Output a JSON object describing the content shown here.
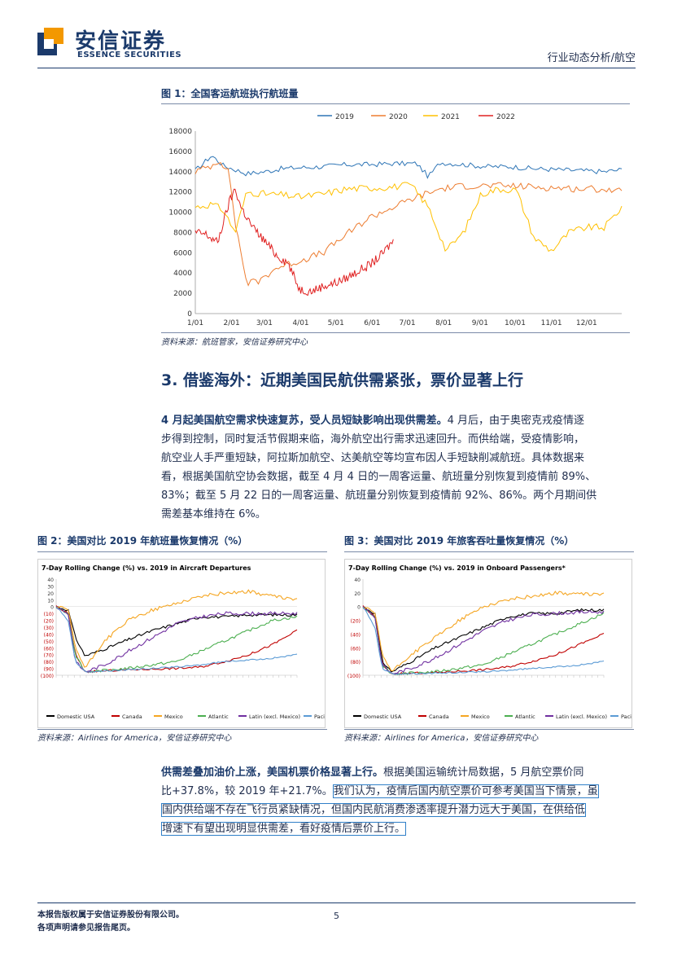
{
  "header": {
    "brand_cn": "安信证券",
    "brand_en": "ESSENCE SECURITIES",
    "section_label": "行业动态分析/航空"
  },
  "figure1": {
    "title": "图 1：全国客运航班执行航班量",
    "source": "资料来源：航班管家，安信证券研究中心",
    "chart_data": {
      "type": "line",
      "legend": [
        "2019",
        "2020",
        "2021",
        "2022"
      ],
      "colors": {
        "2019": "#2e75b6",
        "2020": "#ed7d31",
        "2021": "#ffc000",
        "2022": "#e02020"
      },
      "x_ticks": [
        "1/01",
        "2/01",
        "3/01",
        "4/01",
        "5/01",
        "6/01",
        "7/01",
        "8/01",
        "9/01",
        "10/01",
        "11/01",
        "12/01"
      ],
      "y_ticks": [
        "18000",
        "16000",
        "14000",
        "12000",
        "10000",
        "8000",
        "6000",
        "4000",
        "2000",
        "0"
      ],
      "ylim": [
        0,
        18000
      ],
      "series": [
        {
          "name": "2019",
          "x": [
            1,
            15,
            25,
            35,
            45,
            60,
            75,
            90,
            110,
            130,
            150,
            170,
            190,
            200,
            210,
            230,
            250,
            270,
            290,
            310,
            330,
            350,
            365
          ],
          "values": [
            14100,
            15600,
            14600,
            14200,
            13800,
            14000,
            14300,
            14400,
            14500,
            14700,
            14700,
            14800,
            14800,
            13500,
            14900,
            14700,
            14500,
            14500,
            14300,
            14200,
            14100,
            14000,
            14200
          ]
        },
        {
          "name": "2020",
          "x": [
            1,
            15,
            22,
            30,
            35,
            45,
            55,
            70,
            90,
            110,
            130,
            150,
            170,
            190,
            210,
            230,
            250,
            270,
            290,
            310,
            330,
            350,
            365
          ],
          "values": [
            14000,
            14600,
            15200,
            13800,
            9000,
            3000,
            3200,
            4500,
            5200,
            6000,
            7800,
            9500,
            10500,
            11500,
            12300,
            12600,
            12600,
            12600,
            12500,
            12400,
            12300,
            12300,
            12000
          ]
        },
        {
          "name": "2021",
          "x": [
            1,
            15,
            25,
            35,
            45,
            60,
            75,
            90,
            110,
            130,
            150,
            170,
            185,
            200,
            215,
            230,
            245,
            260,
            275,
            290,
            305,
            320,
            335,
            350,
            365
          ],
          "values": [
            10500,
            10800,
            10200,
            8000,
            12000,
            11800,
            11700,
            11500,
            11800,
            12300,
            12400,
            12500,
            12700,
            10500,
            6200,
            8000,
            11800,
            12300,
            12200,
            7500,
            6200,
            8000,
            8500,
            8500,
            10500
          ]
        },
        {
          "name": "2022",
          "x": [
            1,
            10,
            20,
            30,
            35,
            40,
            50,
            60,
            70,
            80,
            90,
            100,
            110,
            120,
            130,
            140,
            150,
            160,
            170
          ],
          "values": [
            8000,
            7800,
            7000,
            11000,
            12300,
            10500,
            8500,
            7200,
            5800,
            5000,
            2400,
            2200,
            2700,
            3000,
            3500,
            4200,
            4800,
            5800,
            7200
          ]
        }
      ]
    }
  },
  "section3": {
    "title": "3. 借鉴海外：近期美国民航供需紧张，票价显著上行",
    "para_lines": [
      "4 月起美国航空需求快速复苏，受人员短缺影响出现供需差。4 月后，由于奥密克戎疫情逐",
      "步得到控制，同时复活节假期来临，海外航空出行需求迅速回升。而供给端，受疫情影响，",
      "航空业人手严重短缺，阿拉斯加航空、达美航空等均宣布因人手短缺削减航班。具体数据来",
      "看，根据美国航空协会数据，截至 4 月 4 日的一周客运量、航班量分别恢复到疫情前 89%、",
      "83%；截至 5 月 22 日的一周客运量、航班量分别恢复到疫情前 92%、86%。两个月期间供",
      "需差基本维持在 6%。"
    ],
    "para_bold": "4 月起美国航空需求快速复苏，受人员短缺影响出现供需差。"
  },
  "figure2": {
    "title": "图 2：美国对比 2019 年航班量恢复情况（%）",
    "source": "资料来源：Airlines for America，安信证券研究中心",
    "chart_data": {
      "type": "line",
      "title": "7-Day Rolling Change (%) vs. 2019 in Aircraft Departures",
      "y_ticks": [
        "40",
        "30",
        "20",
        "10",
        "0",
        "(10)",
        "(20)",
        "(30)",
        "(40)",
        "(50)",
        "(60)",
        "(70)",
        "(80)",
        "(90)",
        "(100)"
      ],
      "ylim": [
        -100,
        40
      ],
      "legend": [
        "Domestic USA",
        "Canada",
        "Mexico",
        "Atlantic",
        "Latin (excl. Mexico)",
        "Pacific"
      ],
      "colors": {
        "Domestic USA": "#000000",
        "Canada": "#c00000",
        "Mexico": "#f5a623",
        "Atlantic": "#4caf50",
        "Latin (excl. Mexico)": "#7030a0",
        "Pacific": "#5b9bd5"
      },
      "series": [
        {
          "name": "Domestic USA",
          "x": [
            0,
            5,
            8,
            12,
            20,
            30,
            40,
            50,
            60,
            70,
            80,
            90,
            100
          ],
          "values": [
            0,
            -5,
            -45,
            -72,
            -62,
            -48,
            -35,
            -25,
            -15,
            -15,
            -12,
            -12,
            -12
          ]
        },
        {
          "name": "Canada",
          "x": [
            0,
            5,
            8,
            12,
            30,
            50,
            60,
            70,
            80,
            90,
            100
          ],
          "values": [
            0,
            -10,
            -70,
            -95,
            -92,
            -90,
            -88,
            -80,
            -70,
            -55,
            -35
          ]
        },
        {
          "name": "Mexico",
          "x": [
            0,
            5,
            8,
            12,
            20,
            30,
            40,
            50,
            60,
            70,
            80,
            90,
            100
          ],
          "values": [
            0,
            -5,
            -60,
            -90,
            -50,
            -20,
            -5,
            5,
            15,
            20,
            22,
            15,
            10
          ]
        },
        {
          "name": "Atlantic",
          "x": [
            0,
            5,
            8,
            12,
            30,
            50,
            60,
            70,
            80,
            90,
            100
          ],
          "values": [
            0,
            -10,
            -70,
            -95,
            -90,
            -80,
            -65,
            -50,
            -35,
            -20,
            -15
          ]
        },
        {
          "name": "Latin (excl. Mexico)",
          "x": [
            0,
            5,
            8,
            12,
            20,
            30,
            40,
            50,
            60,
            70,
            80,
            90,
            100
          ],
          "values": [
            0,
            -10,
            -80,
            -95,
            -85,
            -65,
            -45,
            -25,
            -15,
            -10,
            -10,
            -10,
            -10
          ]
        },
        {
          "name": "Pacific",
          "x": [
            0,
            5,
            8,
            12,
            30,
            50,
            60,
            70,
            80,
            90,
            100
          ],
          "values": [
            0,
            -20,
            -80,
            -95,
            -92,
            -88,
            -85,
            -80,
            -78,
            -75,
            -70
          ]
        }
      ]
    }
  },
  "figure3": {
    "title": "图 3：美国对比 2019 年旅客吞吐量恢复情况（%）",
    "source": "资料来源：Airlines for America，安信证券研究中心",
    "chart_data": {
      "type": "line",
      "title": "7-Day Rolling Change (%) vs. 2019 in Onboard Passengers*",
      "y_ticks": [
        "40",
        "20",
        "0",
        "(20)",
        "(40)",
        "(60)",
        "(80)",
        "(100)"
      ],
      "ylim": [
        -100,
        40
      ],
      "legend": [
        "Domestic USA",
        "Canada",
        "Mexico",
        "Atlantic",
        "Latin (excl. Mexico)",
        "Pacific"
      ],
      "colors": {
        "Domestic USA": "#000000",
        "Canada": "#c00000",
        "Mexico": "#f5a623",
        "Atlantic": "#4caf50",
        "Latin (excl. Mexico)": "#7030a0",
        "Pacific": "#5b9bd5"
      },
      "series": [
        {
          "name": "Domestic USA",
          "x": [
            0,
            5,
            8,
            12,
            20,
            30,
            40,
            50,
            60,
            70,
            80,
            90,
            100
          ],
          "values": [
            0,
            -10,
            -80,
            -95,
            -80,
            -60,
            -45,
            -30,
            -15,
            -10,
            -10,
            -5,
            -5
          ]
        },
        {
          "name": "Canada",
          "x": [
            0,
            5,
            8,
            12,
            30,
            50,
            60,
            70,
            80,
            90,
            100
          ],
          "values": [
            0,
            -15,
            -85,
            -98,
            -96,
            -92,
            -88,
            -80,
            -70,
            -55,
            -40
          ]
        },
        {
          "name": "Mexico",
          "x": [
            0,
            5,
            8,
            12,
            20,
            30,
            40,
            50,
            60,
            70,
            80,
            90,
            100
          ],
          "values": [
            0,
            -10,
            -70,
            -95,
            -70,
            -45,
            -20,
            0,
            10,
            15,
            20,
            18,
            18
          ]
        },
        {
          "name": "Atlantic",
          "x": [
            0,
            5,
            8,
            12,
            30,
            50,
            60,
            70,
            80,
            90,
            100
          ],
          "values": [
            0,
            -15,
            -85,
            -98,
            -95,
            -85,
            -70,
            -55,
            -40,
            -25,
            -10
          ]
        },
        {
          "name": "Latin (excl. Mexico)",
          "x": [
            0,
            5,
            8,
            12,
            20,
            30,
            40,
            50,
            60,
            70,
            80,
            90,
            100
          ],
          "values": [
            0,
            -15,
            -85,
            -98,
            -90,
            -75,
            -55,
            -35,
            -20,
            -12,
            -10,
            -8,
            -8
          ]
        },
        {
          "name": "Pacific",
          "x": [
            0,
            5,
            8,
            12,
            30,
            50,
            60,
            70,
            80,
            90,
            100
          ],
          "values": [
            0,
            -30,
            -90,
            -98,
            -97,
            -95,
            -93,
            -90,
            -88,
            -85,
            -80
          ]
        }
      ]
    }
  },
  "para2": {
    "bold": "供需差叠加油价上涨，美国机票价格显著上行。",
    "line1_rest": "根据美国运输统计局数据，5 月航空票价同",
    "line2_a": "比+37.8%，较 2019 年+21.7%。",
    "line2_b": "我们认为，疫情后国内航空票价可参考美国当下情景，虽",
    "line3": "国内供给端不存在飞行员紧缺情况，但国内民航消费渗透率提升潜力远大于美国，在供给低",
    "line4": "增速下有望出现明显供需差，看好疫情后票价上行。"
  },
  "footer": {
    "line1": "本报告版权属于安信证券股份有限公司。",
    "line2": "各项声明请参见报告尾页。",
    "page": "5"
  }
}
